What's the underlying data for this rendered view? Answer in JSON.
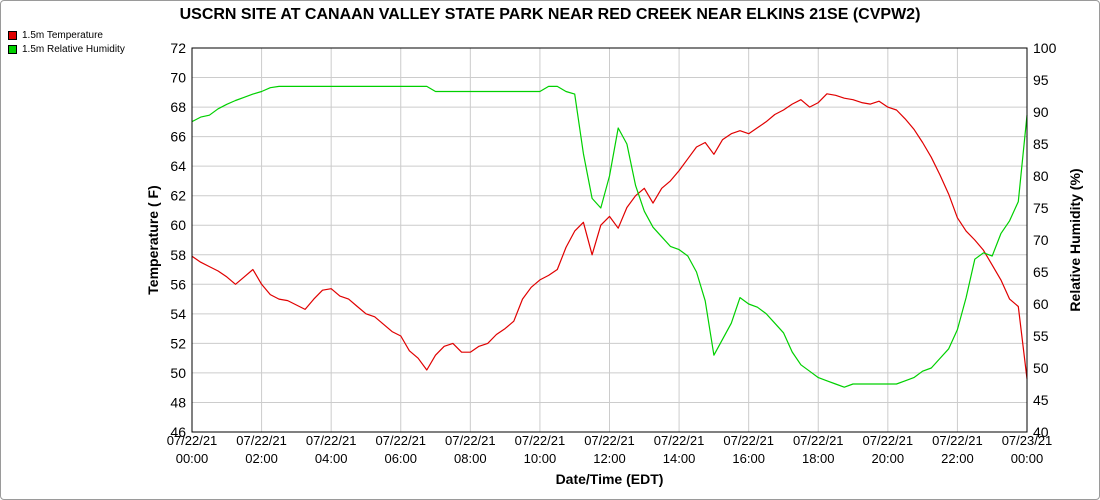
{
  "chart_data": {
    "type": "line",
    "title": "USCRN SITE AT CANAAN VALLEY STATE PARK NEAR RED CREEK NEAR ELKINS 21SE (CVPW2)",
    "xlabel": "Date/Time (EDT)",
    "ylabel_left": "Temperature ( F)",
    "ylabel_right": "Relative Humidity (%)",
    "x_range_hours": [
      0,
      24
    ],
    "xticks": [
      {
        "h": 0,
        "date": "07/22/21",
        "time": "00:00"
      },
      {
        "h": 2,
        "date": "07/22/21",
        "time": "02:00"
      },
      {
        "h": 4,
        "date": "07/22/21",
        "time": "04:00"
      },
      {
        "h": 6,
        "date": "07/22/21",
        "time": "06:00"
      },
      {
        "h": 8,
        "date": "07/22/21",
        "time": "08:00"
      },
      {
        "h": 10,
        "date": "07/22/21",
        "time": "10:00"
      },
      {
        "h": 12,
        "date": "07/22/21",
        "time": "12:00"
      },
      {
        "h": 14,
        "date": "07/22/21",
        "time": "14:00"
      },
      {
        "h": 16,
        "date": "07/22/21",
        "time": "16:00"
      },
      {
        "h": 18,
        "date": "07/22/21",
        "time": "18:00"
      },
      {
        "h": 20,
        "date": "07/22/21",
        "time": "20:00"
      },
      {
        "h": 22,
        "date": "07/22/21",
        "time": "22:00"
      },
      {
        "h": 24,
        "date": "07/23/21",
        "time": "00:00"
      }
    ],
    "yleft": {
      "min": 46,
      "max": 72,
      "ticks": [
        "46",
        "48",
        "50",
        "52",
        "54",
        "56",
        "58",
        "60",
        "62",
        "64",
        "66",
        "68",
        "70",
        "72"
      ]
    },
    "yright": {
      "min": 40,
      "max": 100,
      "ticks": [
        "40",
        "45",
        "50",
        "55",
        "60",
        "65",
        "70",
        "75",
        "80",
        "85",
        "90",
        "95",
        "100"
      ]
    },
    "grid": true,
    "legend_position": "top-left",
    "series": [
      {
        "name": "1.5m Temperature",
        "color": "#e00000",
        "axis": "left",
        "points": [
          [
            0.0,
            57.9
          ],
          [
            0.25,
            57.5
          ],
          [
            0.5,
            57.2
          ],
          [
            0.75,
            56.9
          ],
          [
            1.0,
            56.5
          ],
          [
            1.25,
            56.0
          ],
          [
            1.5,
            56.5
          ],
          [
            1.75,
            57.0
          ],
          [
            2.0,
            56.0
          ],
          [
            2.25,
            55.3
          ],
          [
            2.5,
            55.0
          ],
          [
            2.75,
            54.9
          ],
          [
            3.0,
            54.6
          ],
          [
            3.25,
            54.3
          ],
          [
            3.5,
            55.0
          ],
          [
            3.75,
            55.6
          ],
          [
            4.0,
            55.7
          ],
          [
            4.25,
            55.2
          ],
          [
            4.5,
            55.0
          ],
          [
            4.75,
            54.5
          ],
          [
            5.0,
            54.0
          ],
          [
            5.25,
            53.8
          ],
          [
            5.5,
            53.3
          ],
          [
            5.75,
            52.8
          ],
          [
            6.0,
            52.5
          ],
          [
            6.25,
            51.5
          ],
          [
            6.5,
            51.0
          ],
          [
            6.75,
            50.2
          ],
          [
            7.0,
            51.2
          ],
          [
            7.25,
            51.8
          ],
          [
            7.5,
            52.0
          ],
          [
            7.75,
            51.4
          ],
          [
            8.0,
            51.4
          ],
          [
            8.25,
            51.8
          ],
          [
            8.5,
            52.0
          ],
          [
            8.75,
            52.6
          ],
          [
            9.0,
            53.0
          ],
          [
            9.25,
            53.5
          ],
          [
            9.5,
            55.0
          ],
          [
            9.75,
            55.8
          ],
          [
            10.0,
            56.3
          ],
          [
            10.25,
            56.6
          ],
          [
            10.5,
            57.0
          ],
          [
            10.75,
            58.5
          ],
          [
            11.0,
            59.6
          ],
          [
            11.25,
            60.2
          ],
          [
            11.5,
            58.0
          ],
          [
            11.75,
            60.0
          ],
          [
            12.0,
            60.6
          ],
          [
            12.25,
            59.8
          ],
          [
            12.5,
            61.2
          ],
          [
            12.75,
            62.0
          ],
          [
            13.0,
            62.5
          ],
          [
            13.25,
            61.5
          ],
          [
            13.5,
            62.5
          ],
          [
            13.75,
            63.0
          ],
          [
            14.0,
            63.7
          ],
          [
            14.25,
            64.5
          ],
          [
            14.5,
            65.3
          ],
          [
            14.75,
            65.6
          ],
          [
            15.0,
            64.8
          ],
          [
            15.25,
            65.8
          ],
          [
            15.5,
            66.2
          ],
          [
            15.75,
            66.4
          ],
          [
            16.0,
            66.2
          ],
          [
            16.25,
            66.6
          ],
          [
            16.5,
            67.0
          ],
          [
            16.75,
            67.5
          ],
          [
            17.0,
            67.8
          ],
          [
            17.25,
            68.2
          ],
          [
            17.5,
            68.5
          ],
          [
            17.75,
            68.0
          ],
          [
            18.0,
            68.3
          ],
          [
            18.25,
            68.9
          ],
          [
            18.5,
            68.8
          ],
          [
            18.75,
            68.6
          ],
          [
            19.0,
            68.5
          ],
          [
            19.25,
            68.3
          ],
          [
            19.5,
            68.2
          ],
          [
            19.75,
            68.4
          ],
          [
            20.0,
            68.0
          ],
          [
            20.25,
            67.8
          ],
          [
            20.5,
            67.2
          ],
          [
            20.75,
            66.5
          ],
          [
            21.0,
            65.6
          ],
          [
            21.25,
            64.6
          ],
          [
            21.5,
            63.4
          ],
          [
            21.75,
            62.1
          ],
          [
            22.0,
            60.5
          ],
          [
            22.25,
            59.6
          ],
          [
            22.5,
            59.0
          ],
          [
            22.75,
            58.3
          ],
          [
            23.0,
            57.3
          ],
          [
            23.25,
            56.3
          ],
          [
            23.5,
            55.0
          ],
          [
            23.75,
            54.5
          ],
          [
            24.0,
            49.6
          ]
        ]
      },
      {
        "name": "1.5m Relative Humidity",
        "color": "#00d000",
        "axis": "right",
        "points": [
          [
            0.0,
            88.5
          ],
          [
            0.25,
            89.2
          ],
          [
            0.5,
            89.5
          ],
          [
            0.75,
            90.5
          ],
          [
            1.0,
            91.2
          ],
          [
            1.25,
            91.8
          ],
          [
            1.5,
            92.3
          ],
          [
            1.75,
            92.8
          ],
          [
            2.0,
            93.2
          ],
          [
            2.25,
            93.8
          ],
          [
            2.5,
            94.0
          ],
          [
            2.75,
            94.0
          ],
          [
            3.0,
            94.0
          ],
          [
            3.25,
            94.0
          ],
          [
            3.5,
            94.0
          ],
          [
            3.75,
            94.0
          ],
          [
            4.0,
            94.0
          ],
          [
            4.25,
            94.0
          ],
          [
            4.5,
            94.0
          ],
          [
            4.75,
            94.0
          ],
          [
            5.0,
            94.0
          ],
          [
            5.25,
            94.0
          ],
          [
            5.5,
            94.0
          ],
          [
            5.75,
            94.0
          ],
          [
            6.0,
            94.0
          ],
          [
            6.25,
            94.0
          ],
          [
            6.5,
            94.0
          ],
          [
            6.75,
            94.0
          ],
          [
            7.0,
            93.2
          ],
          [
            7.25,
            93.2
          ],
          [
            7.5,
            93.2
          ],
          [
            7.75,
            93.2
          ],
          [
            8.0,
            93.2
          ],
          [
            8.25,
            93.2
          ],
          [
            8.5,
            93.2
          ],
          [
            8.75,
            93.2
          ],
          [
            9.0,
            93.2
          ],
          [
            9.25,
            93.2
          ],
          [
            9.5,
            93.2
          ],
          [
            9.75,
            93.2
          ],
          [
            10.0,
            93.2
          ],
          [
            10.25,
            94.0
          ],
          [
            10.5,
            94.0
          ],
          [
            10.75,
            93.2
          ],
          [
            11.0,
            92.8
          ],
          [
            11.25,
            83.5
          ],
          [
            11.5,
            76.5
          ],
          [
            11.75,
            75.0
          ],
          [
            12.0,
            80.0
          ],
          [
            12.25,
            87.5
          ],
          [
            12.5,
            85.0
          ],
          [
            12.75,
            78.5
          ],
          [
            13.0,
            74.5
          ],
          [
            13.25,
            72.0
          ],
          [
            13.5,
            70.5
          ],
          [
            13.75,
            69.0
          ],
          [
            14.0,
            68.5
          ],
          [
            14.25,
            67.5
          ],
          [
            14.5,
            65.0
          ],
          [
            14.75,
            60.5
          ],
          [
            15.0,
            52.0
          ],
          [
            15.25,
            54.5
          ],
          [
            15.5,
            57.0
          ],
          [
            15.75,
            61.0
          ],
          [
            16.0,
            60.0
          ],
          [
            16.25,
            59.5
          ],
          [
            16.5,
            58.5
          ],
          [
            16.75,
            57.0
          ],
          [
            17.0,
            55.5
          ],
          [
            17.25,
            52.5
          ],
          [
            17.5,
            50.5
          ],
          [
            17.75,
            49.5
          ],
          [
            18.0,
            48.5
          ],
          [
            18.25,
            48.0
          ],
          [
            18.5,
            47.5
          ],
          [
            18.75,
            47.0
          ],
          [
            19.0,
            47.5
          ],
          [
            19.25,
            47.5
          ],
          [
            19.5,
            47.5
          ],
          [
            19.75,
            47.5
          ],
          [
            20.0,
            47.5
          ],
          [
            20.25,
            47.5
          ],
          [
            20.5,
            48.0
          ],
          [
            20.75,
            48.5
          ],
          [
            21.0,
            49.5
          ],
          [
            21.25,
            50.0
          ],
          [
            21.5,
            51.5
          ],
          [
            21.75,
            53.0
          ],
          [
            22.0,
            56.0
          ],
          [
            22.25,
            61.0
          ],
          [
            22.5,
            67.0
          ],
          [
            22.75,
            68.0
          ],
          [
            23.0,
            67.5
          ],
          [
            23.25,
            71.0
          ],
          [
            23.5,
            73.0
          ],
          [
            23.75,
            76.0
          ],
          [
            24.0,
            89.5
          ]
        ]
      }
    ]
  }
}
